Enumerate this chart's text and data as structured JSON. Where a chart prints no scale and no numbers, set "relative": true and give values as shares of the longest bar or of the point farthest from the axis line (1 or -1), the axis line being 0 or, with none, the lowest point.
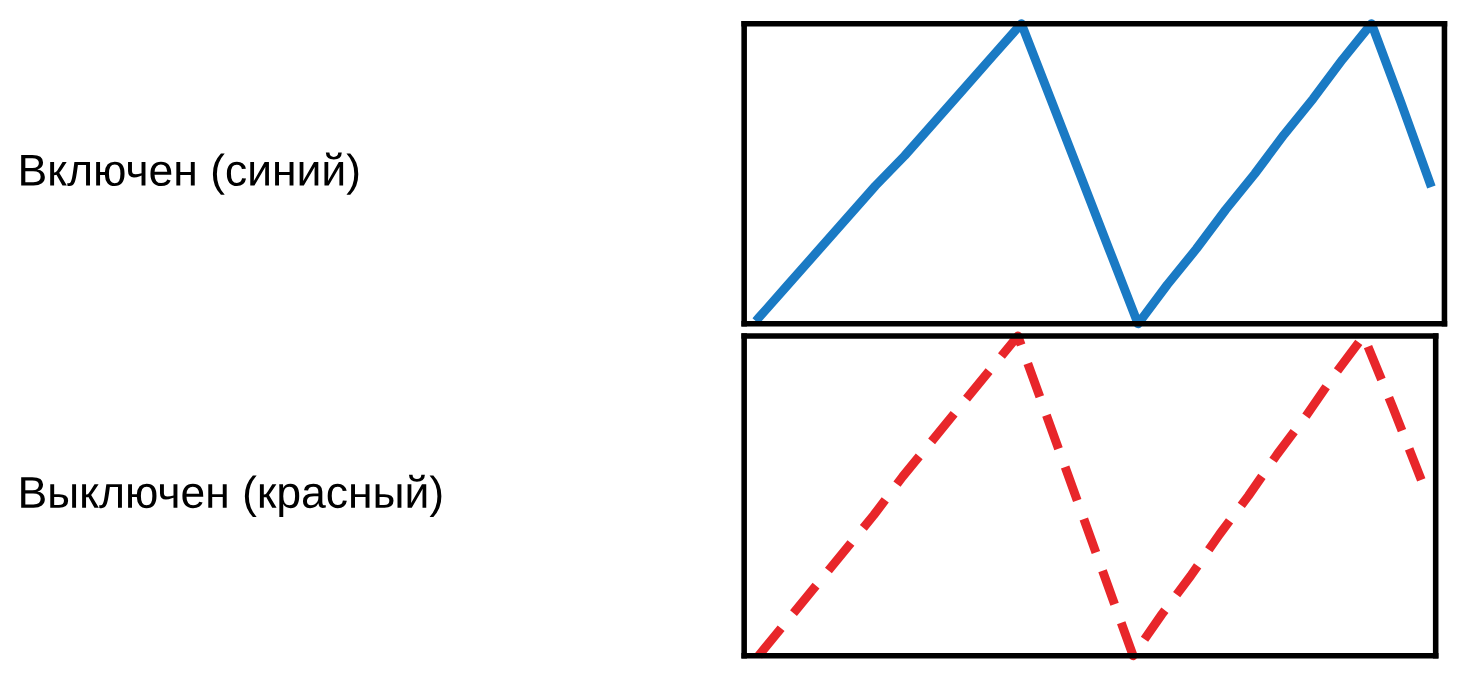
{
  "chart_data": [
    {
      "type": "line",
      "relative": true,
      "tick_labels": false,
      "legend": false,
      "line_style": "solid",
      "marker": "none",
      "categories": [
        null,
        null,
        null,
        null,
        null,
        null,
        null,
        null,
        null,
        null,
        null,
        null,
        null,
        null,
        null,
        null,
        null,
        null,
        null,
        null,
        null,
        null,
        null,
        null
      ],
      "series": [
        {
          "name": "Включен (синий)",
          "color": "#1a7ac4",
          "values": [
            0.02,
            0.13,
            0.24,
            0.35,
            0.46,
            0.56,
            0.67,
            0.78,
            0.89,
            1,
            0.75,
            0.5,
            0.25,
            0,
            0.13,
            0.25,
            0.38,
            0.5,
            0.63,
            0.75,
            0.88,
            1,
            0.74,
            0.47
          ]
        }
      ]
    },
    {
      "type": "line",
      "relative": true,
      "tick_labels": false,
      "legend": false,
      "line_style": "dashed",
      "marker": "none",
      "categories": [
        null,
        null,
        null,
        null,
        null,
        null,
        null,
        null,
        null,
        null,
        null,
        null,
        null,
        null,
        null,
        null,
        null,
        null,
        null,
        null,
        null,
        null,
        null,
        null
      ],
      "series": [
        {
          "name": "Выключен (красный)",
          "color": "#e8262a",
          "values": [
            0,
            0.11,
            0.22,
            0.33,
            0.44,
            0.56,
            0.67,
            0.78,
            0.89,
            1,
            0.75,
            0.5,
            0.25,
            0,
            0.13,
            0.25,
            0.38,
            0.5,
            0.63,
            0.75,
            0.88,
            1,
            0.78,
            0.55
          ]
        }
      ]
    }
  ]
}
